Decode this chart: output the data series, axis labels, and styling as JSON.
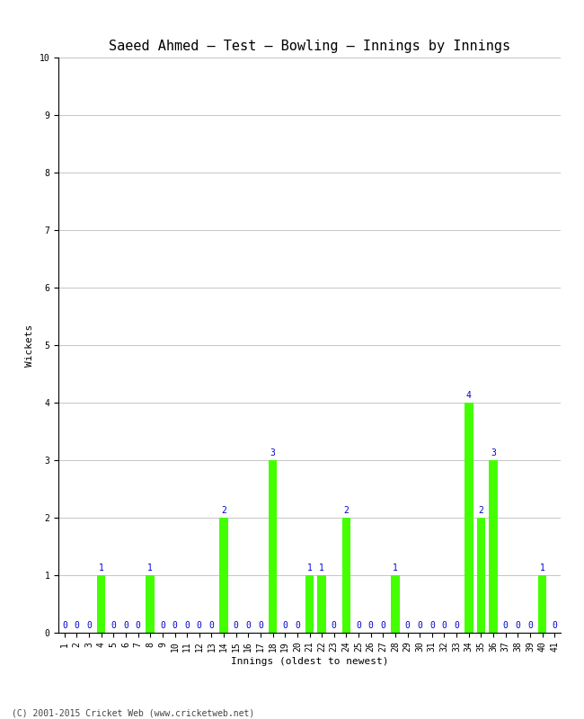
{
  "title": "Saeed Ahmed – Test – Bowling – Innings by Innings",
  "xlabel": "Innings (oldest to newest)",
  "ylabel": "Wickets",
  "footnote": "(C) 2001-2015 Cricket Web (www.cricketweb.net)",
  "ylim": [
    0,
    10
  ],
  "yticks": [
    0,
    1,
    2,
    3,
    4,
    5,
    6,
    7,
    8,
    9,
    10
  ],
  "innings": [
    1,
    2,
    3,
    4,
    5,
    6,
    7,
    8,
    9,
    10,
    11,
    12,
    13,
    14,
    15,
    16,
    17,
    18,
    19,
    20,
    21,
    22,
    23,
    24,
    25,
    26,
    27,
    28,
    29,
    30,
    31,
    32,
    33,
    34,
    35,
    36,
    37,
    38,
    39,
    40,
    41
  ],
  "wickets": [
    0,
    0,
    0,
    1,
    0,
    0,
    0,
    1,
    0,
    0,
    0,
    0,
    0,
    2,
    0,
    0,
    0,
    3,
    0,
    0,
    1,
    1,
    0,
    2,
    0,
    0,
    0,
    1,
    0,
    0,
    0,
    0,
    0,
    4,
    2,
    3,
    0,
    0,
    0,
    1,
    0
  ],
  "bar_color": "#44ff00",
  "label_color": "#0000cc",
  "title_fontsize": 11,
  "label_fontsize": 8,
  "tick_fontsize": 7,
  "annot_fontsize": 7,
  "ylabel_fontsize": 8,
  "footnote_fontsize": 7,
  "background_color": "#ffffff",
  "grid_color": "#bbbbbb"
}
